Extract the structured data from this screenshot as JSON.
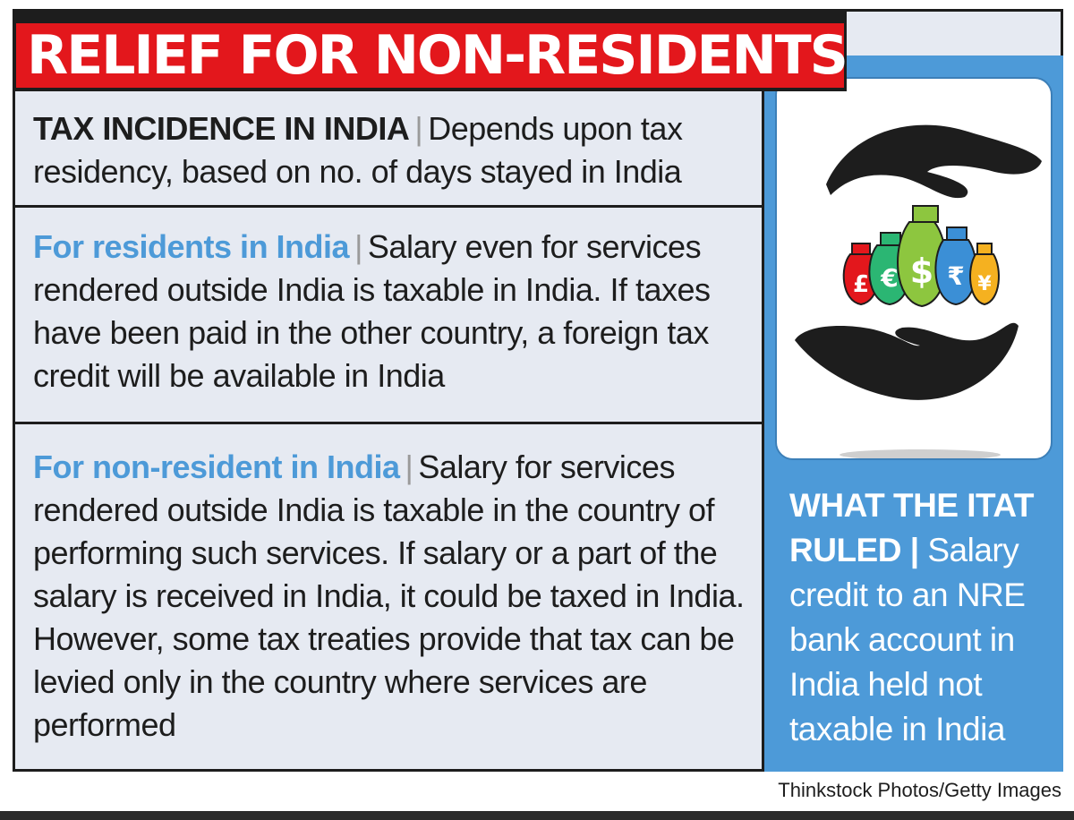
{
  "title": "RELIEF FOR NON-RESIDENTS",
  "sections": [
    {
      "heading": "TAX INCIDENCE IN INDIA",
      "separator": "|",
      "text": "Depends upon tax residency, based on no. of days stayed in India"
    },
    {
      "heading": "For residents in India",
      "separator": "|",
      "text": "Salary even for services rendered outside India is taxable in India. If taxes have been paid in the other country, a foreign tax credit will be available in India"
    },
    {
      "heading": "For non-resident in India",
      "separator": "|",
      "text": "Salary for services rendered outside India is taxable in the country of performing such services. If salary or a part of the salary is received in India, it could be taxed in India. However, some tax treaties provide that tax can be levied only in the country where services are performed"
    }
  ],
  "ruling": {
    "heading": "WHAT THE ITAT RULED",
    "separator": "|",
    "text": "Salary credit to an NRE bank account in India held not taxable in India"
  },
  "illustration": {
    "icon": "hands-with-money-bags-icon",
    "currency_symbols": [
      "£",
      "€",
      "$",
      "₹",
      "¥"
    ],
    "bag_colors": [
      "#e3171c",
      "#2bb673",
      "#8dc63f",
      "#3b8fd6",
      "#f5b120"
    ]
  },
  "credit": "Thinkstock Photos/Getty Images",
  "colors": {
    "title_red": "#e3171c",
    "accent_blue": "#4d9ad8",
    "panel_bg": "#e6eaf2",
    "text_dark": "#1d1d1d"
  }
}
